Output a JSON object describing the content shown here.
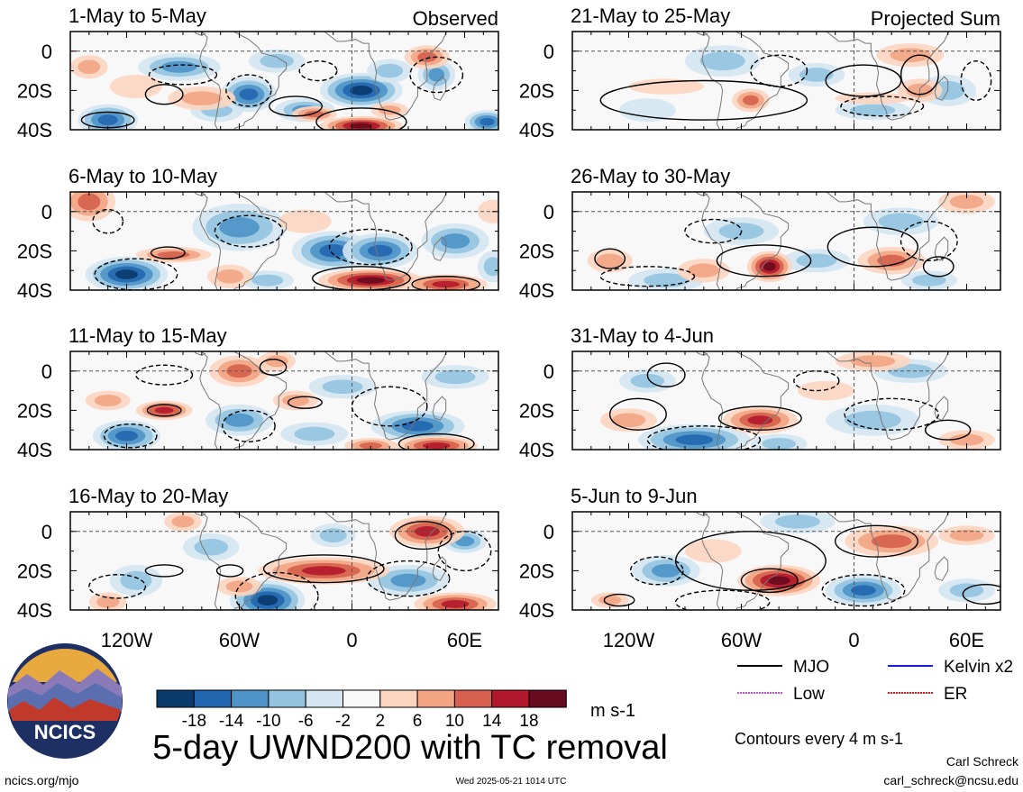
{
  "columns": [
    "Observed",
    "Projected Sum"
  ],
  "panels": [
    {
      "title": "1-May to 5-May",
      "column": "Observed",
      "blobs": [
        [
          -130,
          -35,
          16,
          8,
          -14
        ],
        [
          -92,
          -8,
          22,
          7,
          -10
        ],
        [
          -72,
          -30,
          14,
          6,
          -8
        ],
        [
          -55,
          -22,
          15,
          9,
          -14
        ],
        [
          -40,
          -5,
          15,
          6,
          -8
        ],
        [
          -25,
          -30,
          16,
          6,
          -10
        ],
        [
          5,
          -20,
          22,
          9,
          -18
        ],
        [
          20,
          -10,
          12,
          6,
          -8
        ],
        [
          45,
          -12,
          10,
          8,
          -10
        ],
        [
          72,
          -36,
          12,
          6,
          -14
        ],
        [
          5,
          -38,
          22,
          5,
          18
        ],
        [
          -20,
          -32,
          12,
          4,
          10
        ],
        [
          -80,
          -24,
          18,
          6,
          6
        ],
        [
          -140,
          -8,
          10,
          6,
          6
        ],
        [
          40,
          -3,
          12,
          6,
          10
        ],
        [
          20,
          -30,
          10,
          4,
          6
        ],
        [
          -115,
          -18,
          14,
          6,
          4
        ]
      ],
      "contours": [
        [
          -30,
          -28,
          14,
          5,
          1
        ],
        [
          5,
          -36,
          24,
          7,
          1
        ],
        [
          -100,
          -22,
          10,
          5,
          1
        ],
        [
          -130,
          -35,
          14,
          4,
          1
        ],
        [
          -18,
          -10,
          10,
          5,
          -1
        ],
        [
          45,
          -12,
          14,
          9,
          -1
        ],
        [
          -90,
          -12,
          18,
          5,
          -1
        ],
        [
          -55,
          -20,
          12,
          8,
          -1
        ]
      ]
    },
    {
      "title": "6-May to 10-May",
      "column": "Observed",
      "blobs": [
        [
          -120,
          -32,
          22,
          9,
          -18
        ],
        [
          -60,
          -8,
          25,
          12,
          -12
        ],
        [
          -10,
          -20,
          22,
          10,
          -14
        ],
        [
          15,
          -20,
          20,
          9,
          -16
        ],
        [
          55,
          -15,
          18,
          9,
          -10
        ],
        [
          75,
          -28,
          8,
          8,
          -8
        ],
        [
          -45,
          -35,
          14,
          5,
          -6
        ],
        [
          -140,
          5,
          14,
          10,
          12
        ],
        [
          -95,
          -22,
          20,
          4,
          10
        ],
        [
          10,
          -35,
          28,
          6,
          18
        ],
        [
          50,
          -37,
          22,
          5,
          16
        ],
        [
          -65,
          -33,
          12,
          6,
          6
        ],
        [
          -25,
          -5,
          14,
          6,
          4
        ],
        [
          75,
          0,
          8,
          6,
          4
        ]
      ],
      "contours": [
        [
          -98,
          -21,
          9,
          3,
          1
        ],
        [
          5,
          -34,
          26,
          6,
          1
        ],
        [
          50,
          -37,
          18,
          4,
          1
        ],
        [
          -115,
          -32,
          22,
          8,
          -1
        ],
        [
          10,
          -18,
          22,
          9,
          -1
        ],
        [
          -55,
          -10,
          18,
          8,
          -1
        ],
        [
          -130,
          -5,
          8,
          6,
          -1
        ]
      ]
    },
    {
      "title": "11-May to 15-May",
      "column": "Observed",
      "blobs": [
        [
          -120,
          -33,
          18,
          8,
          -16
        ],
        [
          -60,
          -25,
          18,
          8,
          -12
        ],
        [
          -20,
          -32,
          18,
          6,
          -8
        ],
        [
          35,
          -28,
          25,
          8,
          -16
        ],
        [
          -5,
          -8,
          18,
          6,
          -6
        ],
        [
          55,
          -3,
          18,
          6,
          -8
        ],
        [
          -100,
          -20,
          15,
          5,
          16
        ],
        [
          -130,
          -15,
          12,
          5,
          8
        ],
        [
          -60,
          0,
          16,
          8,
          10
        ],
        [
          45,
          -38,
          22,
          5,
          16
        ],
        [
          -30,
          -15,
          12,
          5,
          6
        ],
        [
          10,
          -38,
          14,
          4,
          10
        ],
        [
          -40,
          5,
          10,
          5,
          6
        ]
      ],
      "contours": [
        [
          -100,
          -20,
          9,
          3,
          1
        ],
        [
          -42,
          2,
          7,
          4,
          1
        ],
        [
          -25,
          -16,
          9,
          3,
          1
        ],
        [
          45,
          -37,
          20,
          5,
          1
        ],
        [
          -118,
          -33,
          14,
          6,
          -1
        ],
        [
          -55,
          -28,
          14,
          8,
          -1
        ],
        [
          20,
          -18,
          20,
          10,
          -1
        ],
        [
          -100,
          -2,
          15,
          5,
          -1
        ]
      ]
    },
    {
      "title": "16-May to 20-May",
      "column": "Observed",
      "blobs": [
        [
          -45,
          -35,
          20,
          10,
          -18
        ],
        [
          -115,
          -25,
          14,
          8,
          -8
        ],
        [
          -75,
          -8,
          15,
          7,
          -6
        ],
        [
          30,
          -25,
          22,
          8,
          -12
        ],
        [
          -10,
          -2,
          12,
          6,
          -6
        ],
        [
          60,
          -5,
          12,
          6,
          -10
        ],
        [
          -15,
          -20,
          35,
          7,
          16
        ],
        [
          40,
          0,
          20,
          8,
          14
        ],
        [
          -130,
          -36,
          10,
          5,
          8
        ],
        [
          55,
          -37,
          22,
          6,
          14
        ],
        [
          -60,
          -28,
          12,
          5,
          6
        ],
        [
          -90,
          5,
          10,
          5,
          6
        ]
      ],
      "contours": [
        [
          -15,
          -19,
          32,
          7,
          1
        ],
        [
          38,
          -2,
          15,
          7,
          1
        ],
        [
          -100,
          -20,
          10,
          3,
          1
        ],
        [
          -65,
          -20,
          7,
          3,
          1
        ],
        [
          -40,
          -33,
          22,
          12,
          -1
        ],
        [
          30,
          -24,
          22,
          9,
          -1
        ],
        [
          -125,
          -28,
          15,
          6,
          -1
        ],
        [
          60,
          -10,
          14,
          10,
          -1
        ]
      ]
    },
    {
      "title": "21-May to 25-May",
      "column": "Projected Sum",
      "blobs": [
        [
          -70,
          -5,
          20,
          8,
          -8
        ],
        [
          -20,
          -12,
          15,
          6,
          -6
        ],
        [
          50,
          -20,
          15,
          8,
          -6
        ],
        [
          -110,
          -30,
          15,
          6,
          -4
        ],
        [
          10,
          -30,
          20,
          5,
          -6
        ],
        [
          30,
          -2,
          18,
          6,
          8
        ],
        [
          -55,
          -25,
          10,
          6,
          10
        ],
        [
          35,
          -20,
          12,
          6,
          6
        ],
        [
          -100,
          -18,
          20,
          4,
          4
        ],
        [
          10,
          -24,
          20,
          3,
          4
        ]
      ],
      "contours": [
        [
          -80,
          -25,
          55,
          10,
          1
        ],
        [
          5,
          -15,
          20,
          8,
          1
        ],
        [
          35,
          -12,
          10,
          10,
          1
        ],
        [
          -40,
          -10,
          15,
          8,
          -1
        ],
        [
          15,
          -28,
          22,
          5,
          -1
        ],
        [
          65,
          -15,
          8,
          10,
          -1
        ]
      ]
    },
    {
      "title": "26-May to 30-May",
      "column": "Projected Sum",
      "blobs": [
        [
          -60,
          -10,
          20,
          7,
          -8
        ],
        [
          -20,
          -25,
          18,
          6,
          -6
        ],
        [
          25,
          -5,
          20,
          7,
          -6
        ],
        [
          -100,
          -35,
          20,
          6,
          -6
        ],
        [
          40,
          -35,
          15,
          5,
          -6
        ],
        [
          -45,
          -28,
          12,
          8,
          18
        ],
        [
          20,
          -25,
          18,
          7,
          10
        ],
        [
          -130,
          -25,
          12,
          6,
          8
        ],
        [
          60,
          5,
          15,
          6,
          6
        ],
        [
          -80,
          -30,
          14,
          6,
          6
        ]
      ],
      "contours": [
        [
          -48,
          -25,
          25,
          8,
          1
        ],
        [
          10,
          -18,
          24,
          10,
          1
        ],
        [
          -130,
          -24,
          8,
          5,
          1
        ],
        [
          45,
          -28,
          8,
          5,
          1
        ],
        [
          -75,
          -10,
          15,
          6,
          -1
        ],
        [
          40,
          -15,
          15,
          10,
          -1
        ],
        [
          -110,
          -33,
          25,
          5,
          -1
        ]
      ]
    },
    {
      "title": "31-May to 4-Jun",
      "column": "Projected Sum",
      "blobs": [
        [
          -85,
          -35,
          30,
          8,
          -16
        ],
        [
          -40,
          -37,
          15,
          5,
          -8
        ],
        [
          10,
          -25,
          25,
          8,
          -8
        ],
        [
          -110,
          -5,
          15,
          6,
          -6
        ],
        [
          30,
          0,
          20,
          6,
          -6
        ],
        [
          -50,
          -25,
          20,
          7,
          16
        ],
        [
          -120,
          -25,
          15,
          6,
          8
        ],
        [
          10,
          5,
          20,
          5,
          8
        ],
        [
          60,
          -35,
          15,
          5,
          8
        ],
        [
          -15,
          -10,
          15,
          5,
          4
        ]
      ],
      "contours": [
        [
          -50,
          -24,
          22,
          6,
          1
        ],
        [
          -115,
          -22,
          15,
          8,
          1
        ],
        [
          50,
          -30,
          12,
          5,
          1
        ],
        [
          -100,
          -2,
          10,
          6,
          1
        ],
        [
          -80,
          -35,
          30,
          7,
          -1
        ],
        [
          20,
          -22,
          25,
          8,
          -1
        ],
        [
          -20,
          -5,
          12,
          5,
          -1
        ]
      ]
    },
    {
      "title": "5-Jun to 9-Jun",
      "column": "Projected Sum",
      "blobs": [
        [
          -100,
          -20,
          18,
          8,
          -12
        ],
        [
          5,
          -30,
          20,
          8,
          -14
        ],
        [
          60,
          -30,
          15,
          6,
          -6
        ],
        [
          -30,
          5,
          20,
          6,
          -6
        ],
        [
          -40,
          -25,
          22,
          8,
          18
        ],
        [
          20,
          -5,
          25,
          8,
          12
        ],
        [
          -130,
          -35,
          10,
          4,
          6
        ],
        [
          -75,
          -10,
          15,
          6,
          4
        ],
        [
          60,
          -2,
          15,
          5,
          6
        ]
      ],
      "contours": [
        [
          -55,
          -15,
          40,
          15,
          1
        ],
        [
          12,
          -5,
          22,
          8,
          1
        ],
        [
          -125,
          -35,
          8,
          3,
          1
        ],
        [
          70,
          -32,
          12,
          5,
          1
        ],
        [
          -45,
          -25,
          15,
          6,
          1
        ],
        [
          -105,
          -20,
          14,
          7,
          -1
        ],
        [
          5,
          -30,
          22,
          8,
          -1
        ],
        [
          -70,
          -36,
          25,
          6,
          -1
        ]
      ]
    }
  ],
  "chart_data": {
    "type": "heatmap",
    "variable": "5-day UWND200 with TC removal",
    "units": "m s-1",
    "x_tick_labels": [
      "120W",
      "60W",
      "0",
      "60E"
    ],
    "y_tick_labels": [
      "0",
      "20S",
      "40S"
    ],
    "colorbar_tick_labels": [
      "-18",
      "-14",
      "-10",
      "-6",
      "-2",
      "2",
      "6",
      "10",
      "14",
      "18"
    ],
    "colorbar_colors": [
      "#0a3a6c",
      "#2266b0",
      "#4e94c8",
      "#93c3df",
      "#d3e6f1",
      "#f8f8f8",
      "#fcd5c0",
      "#f2a483",
      "#d6604d",
      "#b2182b",
      "#670a1f"
    ],
    "contour_interval_note": "Contours every 4 m s-1",
    "legend": [
      {
        "label": "MJO",
        "color": "#000000"
      },
      {
        "label": "Kelvin x2",
        "color": "#1a1ad6"
      },
      {
        "label": "Low",
        "color": "#c050d8"
      },
      {
        "label": "ER",
        "color": "#d61a1a"
      }
    ]
  },
  "footer": {
    "logo_text": "NCICS",
    "site": "ncics.org/mjo",
    "timestamp": "Wed 2025-05-21 1014 UTC",
    "author": "Carl Schreck",
    "email": "carl_schreck@ncsu.edu"
  }
}
